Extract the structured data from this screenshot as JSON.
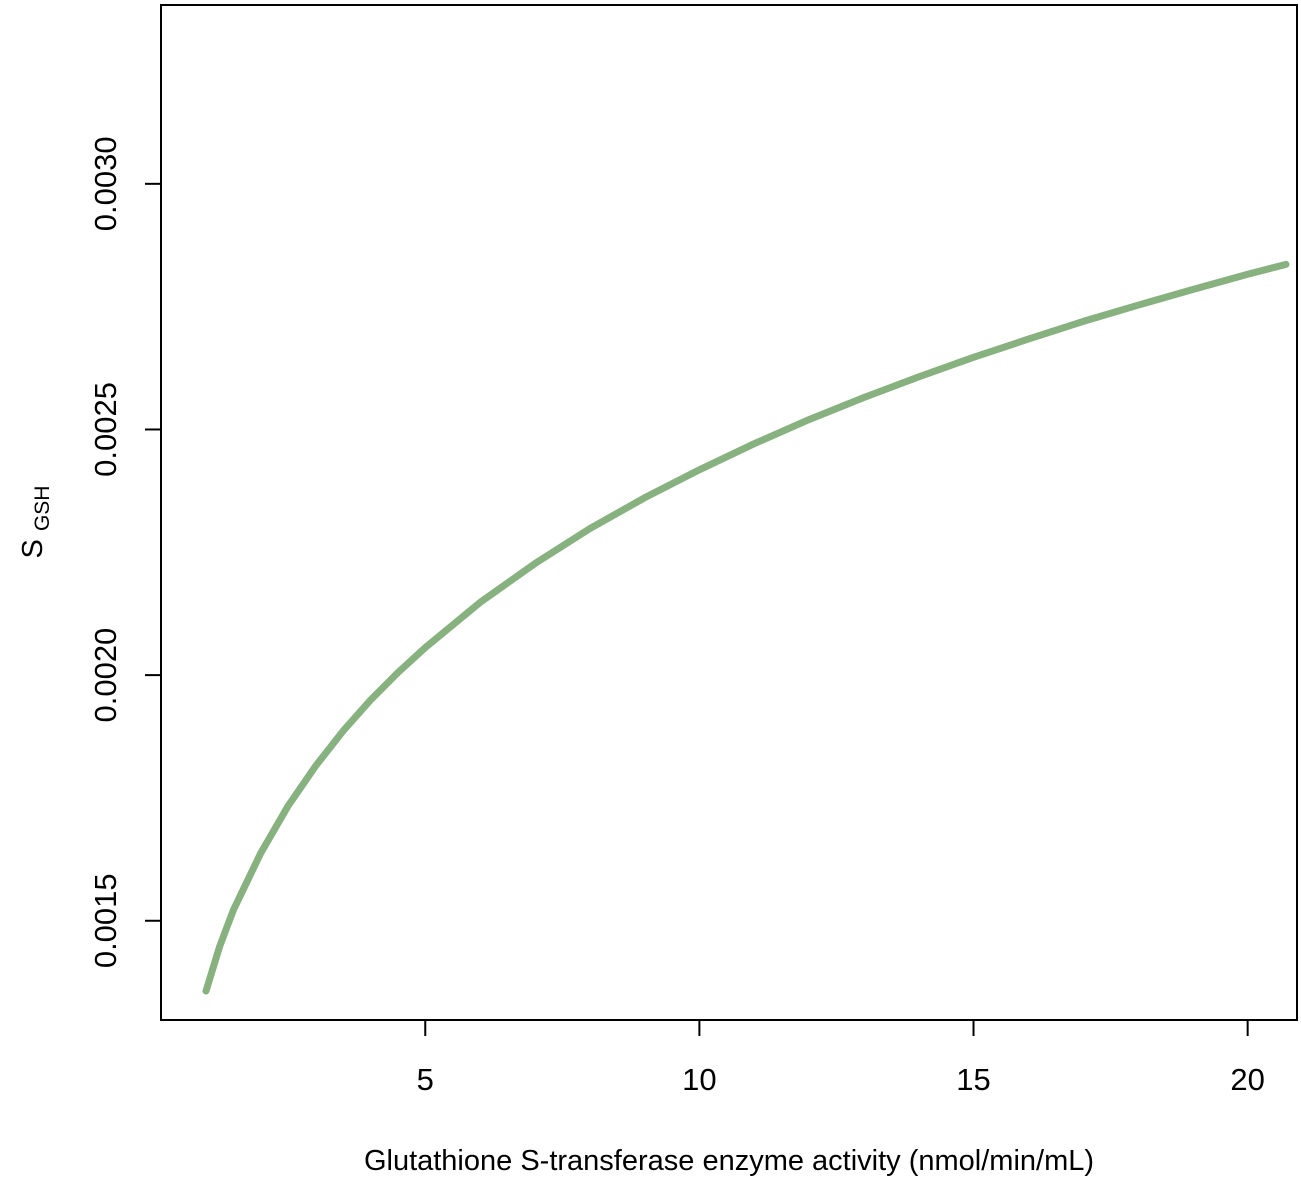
{
  "chart_data": {
    "type": "line",
    "title": "",
    "xlabel": "Glutathione S-transferase enzyme activity (nmol/min/mL)",
    "ylabel": {
      "main": "S",
      "subscript": "GSH"
    },
    "xlim": [
      0.18,
      20.9
    ],
    "ylim": [
      0.001298,
      0.003364
    ],
    "x_ticks": [
      5,
      10,
      15,
      20
    ],
    "x_tick_labels": [
      "5",
      "10",
      "15",
      "20"
    ],
    "y_ticks": [
      0.0015,
      0.002,
      0.0025,
      0.003
    ],
    "y_tick_labels": [
      "0.0015",
      "0.0020",
      "0.0025",
      "0.0030"
    ],
    "grid": false,
    "legend": "none",
    "series": [
      {
        "color": "#87b17f",
        "x": [
          1.0,
          1.25,
          1.5,
          2.0,
          2.5,
          3.0,
          3.5,
          4.0,
          4.5,
          5.0,
          6.0,
          7.0,
          8.0,
          9.0,
          10.0,
          11.0,
          12.0,
          13.0,
          14.0,
          15.0,
          16.0,
          17.0,
          18.0,
          19.0,
          20.0,
          20.7
        ],
        "y": [
          0.001357,
          0.001448,
          0.001522,
          0.001638,
          0.001734,
          0.001815,
          0.001886,
          0.001949,
          0.002005,
          0.002056,
          0.002148,
          0.002227,
          0.002298,
          0.002361,
          0.002418,
          0.002471,
          0.00252,
          0.002565,
          0.002607,
          0.002647,
          0.002684,
          0.00272,
          0.002753,
          0.002785,
          0.002816,
          0.002836
        ]
      }
    ]
  }
}
